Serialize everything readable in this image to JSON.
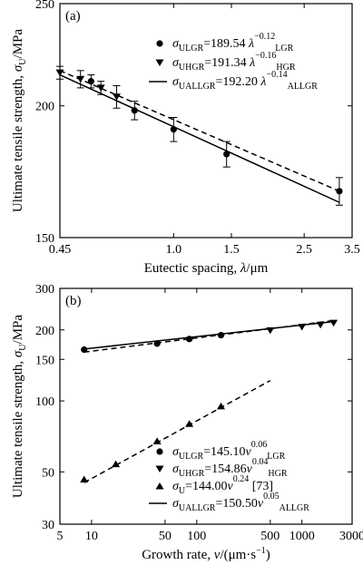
{
  "chart_data": [
    {
      "panel": "(a)",
      "type": "scatter",
      "scale": "log-log",
      "xlabel": "Eutectic spacing, λ/μm",
      "ylabel": "Ultimate tensile strength, σU/MPa",
      "xlim": [
        0.45,
        3.5
      ],
      "ylim": [
        150,
        250
      ],
      "xticks": [
        "0.45",
        "1.0",
        "1.5",
        "2.5",
        "3.5"
      ],
      "yticks": [
        "150",
        "200",
        "250"
      ],
      "grid": false,
      "legend_position": "top-right",
      "series": [
        {
          "name": "σULGR=189.54 λLGR^−0.12",
          "marker": "circle",
          "points": [
            {
              "x": 0.56,
              "y": 211,
              "err": 3
            },
            {
              "x": 0.76,
              "y": 198,
              "err": 4
            },
            {
              "x": 1.0,
              "y": 190,
              "err": 5
            },
            {
              "x": 1.45,
              "y": 180,
              "err": 5
            },
            {
              "x": 3.2,
              "y": 166,
              "err": 5
            }
          ]
        },
        {
          "name": "σUHGR=191.34 λHGR^−0.16",
          "marker": "triangle-down",
          "points": [
            {
              "x": 0.45,
              "y": 215,
              "err": 3
            },
            {
              "x": 0.52,
              "y": 212,
              "err": 4
            },
            {
              "x": 0.6,
              "y": 208,
              "err": 3
            },
            {
              "x": 0.67,
              "y": 204,
              "err": 5
            }
          ]
        },
        {
          "name": "σUALLGR=192.20 λALLGR^−0.14",
          "line": "solid",
          "x": [
            0.45,
            3.2
          ],
          "y": [
            214,
            162
          ]
        },
        {
          "name": "LGR fit",
          "line": "dashed",
          "x": [
            0.45,
            3.2
          ],
          "y": [
            216,
            166
          ]
        }
      ],
      "legend": [
        {
          "marker": "circle",
          "base": "σ",
          "sub": "ULGR",
          "eq": "=189.54 ",
          "sym": "λ",
          "sub2": "LGR",
          "sup": "−0.12"
        },
        {
          "marker": "triangle-down",
          "base": "σ",
          "sub": "UHGR",
          "eq": "=191.34 ",
          "sym": "λ",
          "sub2": "HGR",
          "sup": "−0.16"
        },
        {
          "marker": "line",
          "base": "σ",
          "sub": "UALLGR",
          "eq": "=192.20 ",
          "sym": "λ",
          "sub2": "ALLGR",
          "sup": "−0.14"
        }
      ]
    },
    {
      "panel": "(b)",
      "type": "scatter",
      "scale": "log-log",
      "xlabel": "Growth rate, v/(μm·s−1)",
      "ylabel": "Ultimate tensile strength, σU/MPa",
      "xlim": [
        5,
        3000
      ],
      "ylim": [
        30,
        300
      ],
      "xticks": [
        "5",
        "10",
        "50",
        "100",
        "500",
        "1000",
        "3000"
      ],
      "yticks": [
        "30",
        "50",
        "100",
        "150",
        "200",
        "300"
      ],
      "grid": false,
      "legend_position": "bottom-right",
      "series": [
        {
          "name": "σULGR=145.10 vLGR^0.06",
          "marker": "circle",
          "points": [
            {
              "x": 8.5,
              "y": 165
            },
            {
              "x": 42,
              "y": 175
            },
            {
              "x": 85,
              "y": 183
            },
            {
              "x": 170,
              "y": 190
            }
          ]
        },
        {
          "name": "σUHGR=154.86 vHGR^0.04",
          "marker": "triangle-down",
          "points": [
            {
              "x": 500,
              "y": 199
            },
            {
              "x": 1000,
              "y": 206
            },
            {
              "x": 1500,
              "y": 210
            },
            {
              "x": 2000,
              "y": 214
            }
          ]
        },
        {
          "name": "σU=144.00 v^0.24 [73]",
          "marker": "triangle-up",
          "points": [
            {
              "x": 8.5,
              "y": 46.5
            },
            {
              "x": 17,
              "y": 54
            },
            {
              "x": 42,
              "y": 67.5
            },
            {
              "x": 85,
              "y": 80
            },
            {
              "x": 170,
              "y": 95
            }
          ]
        },
        {
          "name": "σUALLGR=150.50 vALLGR^0.05",
          "line": "solid",
          "x": [
            8.5,
            2000
          ],
          "y": [
            166,
            217
          ]
        },
        {
          "name": "LGR fit",
          "line": "dashed",
          "x": [
            8.5,
            2000
          ],
          "y": [
            161,
            219
          ]
        },
        {
          "name": "[73] fit",
          "line": "dashed",
          "x": [
            8.5,
            500
          ],
          "y": [
            45,
            122
          ]
        }
      ],
      "legend": [
        {
          "marker": "circle",
          "base": "σ",
          "sub": "ULGR",
          "eq": "=145.10",
          "sym": "v",
          "sub2": "LGR",
          "sup": "0.06"
        },
        {
          "marker": "triangle-down",
          "base": "σ",
          "sub": "UHGR",
          "eq": "=154.86",
          "sym": "v",
          "sub2": "HGR",
          "sup": "0.04"
        },
        {
          "marker": "triangle-up",
          "base": "σ",
          "sub": "U",
          "eq": "=144.00",
          "sym": "v",
          "sub2": "",
          "sup": "0.24",
          "ref": " [73]"
        },
        {
          "marker": "line",
          "base": "σ",
          "sub": "UALLGR",
          "eq": "=150.50",
          "sym": "v",
          "sub2": "ALLGR",
          "sup": "0.05"
        }
      ]
    }
  ]
}
